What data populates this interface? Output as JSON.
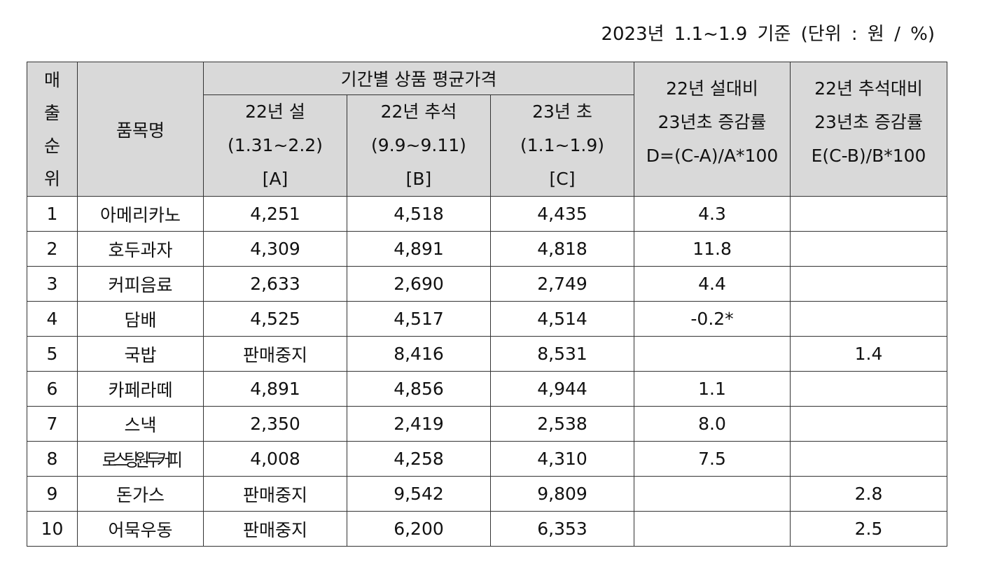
{
  "caption": "2023년 1.1~1.9 기준 (단위 : 원 / %)",
  "table": {
    "header": {
      "rank": [
        "매",
        "출",
        "순",
        "위"
      ],
      "name": "품목명",
      "group": "기간별 상품 평균가격",
      "columns": [
        [
          "22년 설",
          "(1.31~2.2)",
          "[A]"
        ],
        [
          "22년 추석",
          "(9.9~9.11)",
          "[B]"
        ],
        [
          "23년 초",
          "(1.1~1.9)",
          "[C]"
        ],
        [
          "22년 설대비",
          "23년초 증감률",
          "D=(C-A)/A*100"
        ],
        [
          "22년 추석대비",
          "23년초 증감률",
          "E(C-B)/B*100"
        ]
      ]
    },
    "rows": [
      [
        "1",
        "아메리카노",
        "4,251",
        "4,518",
        "4,435",
        "4.3",
        null
      ],
      [
        "2",
        "호두과자",
        "4,309",
        "4,891",
        "4,818",
        "11.8",
        null
      ],
      [
        "3",
        "커피음료",
        "2,633",
        "2,690",
        "2,749",
        "4.4",
        null
      ],
      [
        "4",
        "담배",
        "4,525",
        "4,517",
        "4,514",
        "-0.2*",
        null
      ],
      [
        "5",
        "국밥",
        "판매중지",
        "8,416",
        "8,531",
        null,
        "1.4"
      ],
      [
        "6",
        "카페라떼",
        "4,891",
        "4,856",
        "4,944",
        "1.1",
        null
      ],
      [
        "7",
        "스낵",
        "2,350",
        "2,419",
        "2,538",
        "8.0",
        null
      ],
      [
        "8",
        "로스팅원두커피",
        "4,008",
        "4,258",
        "4,310",
        "7.5",
        null
      ],
      [
        "9",
        "돈가스",
        "판매중지",
        "9,542",
        "9,809",
        null,
        "2.8"
      ],
      [
        "10",
        "어묵우동",
        "판매중지",
        "6,200",
        "6,353",
        null,
        "2.5"
      ]
    ]
  }
}
